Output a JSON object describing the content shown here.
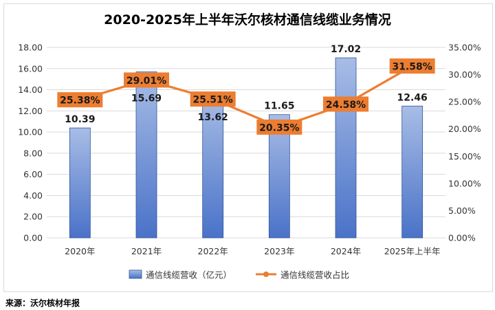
{
  "chart_data": {
    "type": "bar+line",
    "title": "2020-2025年上半年沃尔核材通信线缆业务情况",
    "categories": [
      "2020年",
      "2021年",
      "2022年",
      "2023年",
      "2024年",
      "2025年上半年"
    ],
    "series": [
      {
        "name": "通信线缆营收（亿元）",
        "type": "bar",
        "axis": "left",
        "values": [
          10.39,
          15.69,
          13.62,
          11.65,
          17.02,
          12.46
        ],
        "labels": [
          "10.39",
          "15.69",
          "13.62",
          "11.65",
          "17.02",
          "12.46"
        ],
        "color": "#4472c4"
      },
      {
        "name": "通信线缆营收占比",
        "type": "line",
        "axis": "right",
        "values": [
          25.38,
          29.01,
          25.51,
          20.35,
          24.58,
          31.58
        ],
        "labels": [
          "25.38%",
          "29.01%",
          "25.51%",
          "20.35%",
          "24.58%",
          "31.58%"
        ],
        "color": "#ed7d31"
      }
    ],
    "y_left": {
      "min": 0,
      "max": 18,
      "step": 2,
      "ticks": [
        "0.00",
        "2.00",
        "4.00",
        "6.00",
        "8.00",
        "10.00",
        "12.00",
        "14.00",
        "16.00",
        "18.00"
      ]
    },
    "y_right": {
      "min": 0,
      "max": 35,
      "step": 5,
      "ticks": [
        "0.00%",
        "5.00%",
        "10.00%",
        "15.00%",
        "20.00%",
        "25.00%",
        "30.00%",
        "35.00%"
      ]
    },
    "grid": true,
    "legend_position": "bottom"
  },
  "source": "来源：沃尔核材年报"
}
